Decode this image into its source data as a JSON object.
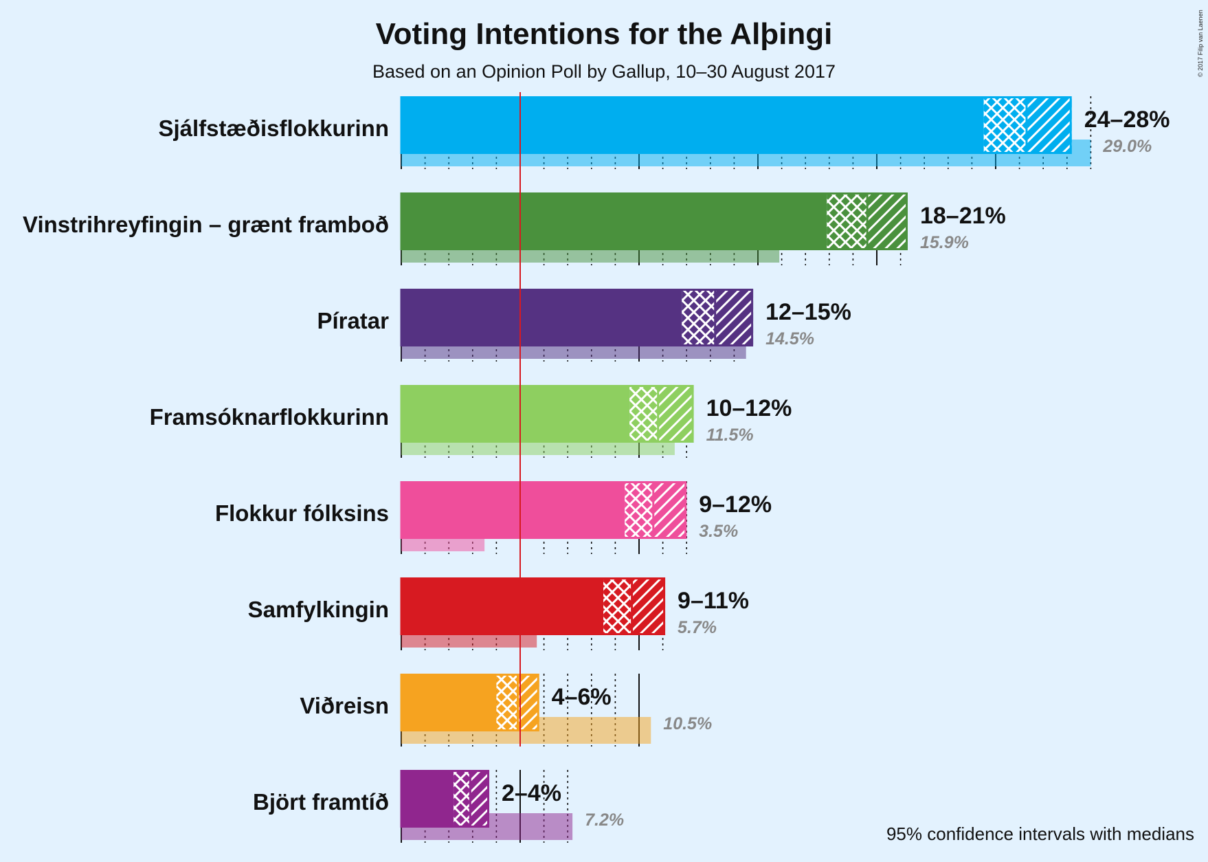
{
  "chart_data": {
    "type": "bar",
    "orientation": "horizontal",
    "title": "Voting Intentions for the Alþingi",
    "subtitle": "Based on an Opinion Poll by Gallup, 10–30 August 2017",
    "note": "95% confidence intervals with medians",
    "copyright": "© 2017 Filip van Laenen",
    "threshold": 5,
    "categories": [
      "Sjálfstæðisflokkurinn",
      "Vinstrihreyfingin – grænt framboð",
      "Píratar",
      "Framsóknarflokkurinn",
      "Flokkur fólksins",
      "Samfylkingin",
      "Viðreisn",
      "Björt framtíð"
    ],
    "series": [
      {
        "name": "Opinion poll",
        "low95": [
          24.5,
          17.9,
          11.8,
          9.6,
          9.4,
          8.5,
          4.0,
          2.2
        ],
        "low80": [
          24.5,
          17.9,
          11.8,
          9.6,
          9.4,
          8.5,
          4.0,
          2.2
        ],
        "median": [
          26.3,
          19.6,
          13.2,
          10.8,
          10.6,
          9.7,
          4.9,
          2.9
        ],
        "high95": [
          28.2,
          21.3,
          14.8,
          12.3,
          12.0,
          11.1,
          5.8,
          3.7
        ],
        "labels": [
          "24–28%",
          "18–21%",
          "12–15%",
          "10–12%",
          "9–12%",
          "9–11%",
          "4–6%",
          "2–4%"
        ]
      },
      {
        "name": "Last result",
        "values": [
          29.0,
          15.9,
          14.5,
          11.5,
          3.5,
          5.7,
          10.5,
          7.2
        ],
        "labels": [
          "29.0%",
          "15.9%",
          "14.5%",
          "11.5%",
          "3.5%",
          "5.7%",
          "10.5%",
          "7.2%"
        ]
      }
    ],
    "colors": [
      "#00AEEF",
      "#4A913D",
      "#553282",
      "#8ECF60",
      "#EF4E9B",
      "#D71A21",
      "#F6A320",
      "#90268E"
    ],
    "xlim": [
      0,
      30
    ],
    "grid": true
  }
}
